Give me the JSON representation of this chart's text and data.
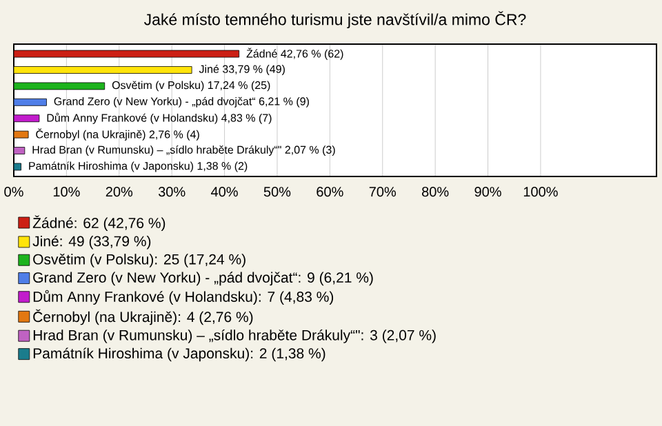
{
  "chart_data": {
    "type": "bar",
    "orientation": "horizontal",
    "title": "Jaké místo temného turismu jste navštívil/a mimo ČR?",
    "categories": [
      null,
      null,
      null,
      null,
      null,
      null,
      null,
      null
    ],
    "series": [
      {
        "name": "Žádné: 62 (42,76 %)",
        "color": "#cc1f14",
        "values": [
          42.76,
          null,
          null,
          null,
          null,
          null,
          null,
          null
        ],
        "value_labels": [
          "Žádné 42,76 % (62)",
          null,
          null,
          null,
          null,
          null,
          null,
          null
        ]
      },
      {
        "name": "Jiné: 49 (33,79 %)",
        "color": "#ffe40a",
        "values": [
          null,
          33.79,
          null,
          null,
          null,
          null,
          null,
          null
        ],
        "value_labels": [
          null,
          "Jiné 33,79 % (49)",
          null,
          null,
          null,
          null,
          null,
          null
        ]
      },
      {
        "name": "Osvětim (v Polsku): 25 (17,24 %)",
        "color": "#1db31d",
        "values": [
          null,
          null,
          17.24,
          null,
          null,
          null,
          null,
          null
        ],
        "value_labels": [
          null,
          null,
          "Osvětim (v Polsku) 17,24 % (25)",
          null,
          null,
          null,
          null,
          null
        ]
      },
      {
        "name": "Grand Zero (v New Yorku) - „pád dvojčat“: 9 (6,21 %)",
        "color": "#4f7ee8",
        "values": [
          null,
          null,
          null,
          6.21,
          null,
          null,
          null,
          null
        ],
        "value_labels": [
          null,
          null,
          null,
          "Grand Zero (v New Yorku) - „pád dvojčat“ 6,21 % (9)",
          null,
          null,
          null,
          null
        ]
      },
      {
        "name": "Dům Anny Frankové (v Holandsku): 7 (4,83 %)",
        "color": "#c21ccc",
        "values": [
          null,
          null,
          null,
          null,
          4.83,
          null,
          null,
          null
        ],
        "value_labels": [
          null,
          null,
          null,
          null,
          "Dům Anny Frankové (v Holandsku) 4,83 % (7)",
          null,
          null,
          null
        ]
      },
      {
        "name": "Černobyl (na Ukrajině): 4 (2,76 %)",
        "color": "#e27812",
        "values": [
          null,
          null,
          null,
          null,
          null,
          2.76,
          null,
          null
        ],
        "value_labels": [
          null,
          null,
          null,
          null,
          null,
          "Černobyl (na Ukrajině) 2,76 % (4)",
          null,
          null
        ]
      },
      {
        "name": "Hrad Bran (v Rumunsku) – „sídlo hraběte Drákuly“\": 3 (2,07 %)",
        "color": "#c062c2",
        "values": [
          null,
          null,
          null,
          null,
          null,
          null,
          2.07,
          null
        ],
        "value_labels": [
          null,
          null,
          null,
          null,
          null,
          null,
          "Hrad Bran (v Rumunsku) – „sídlo hraběte Drákuly“\" 2,07 % (3)",
          null
        ]
      },
      {
        "name": "Památník Hiroshima (v Japonsku): 2 (1,38 %)",
        "color": "#1a7c8c",
        "values": [
          null,
          null,
          null,
          null,
          null,
          null,
          null,
          1.38
        ],
        "value_labels": [
          null,
          null,
          null,
          null,
          null,
          null,
          null,
          "Památník Hiroshima (v Japonsku) 1,38 % (2)"
        ]
      }
    ],
    "xlim": [
      0,
      122
    ],
    "xticks": [
      {
        "value": 0,
        "label": "0%"
      },
      {
        "value": 10,
        "label": "10%"
      },
      {
        "value": 20,
        "label": "20%"
      },
      {
        "value": 30,
        "label": "30%"
      },
      {
        "value": 40,
        "label": "40%"
      },
      {
        "value": 50,
        "label": "50%"
      },
      {
        "value": 60,
        "label": "60%"
      },
      {
        "value": 70,
        "label": "70%"
      },
      {
        "value": 80,
        "label": "80%"
      },
      {
        "value": 90,
        "label": "90%"
      },
      {
        "value": 100,
        "label": "100%"
      }
    ],
    "grid": "x",
    "legend": "bottom"
  }
}
